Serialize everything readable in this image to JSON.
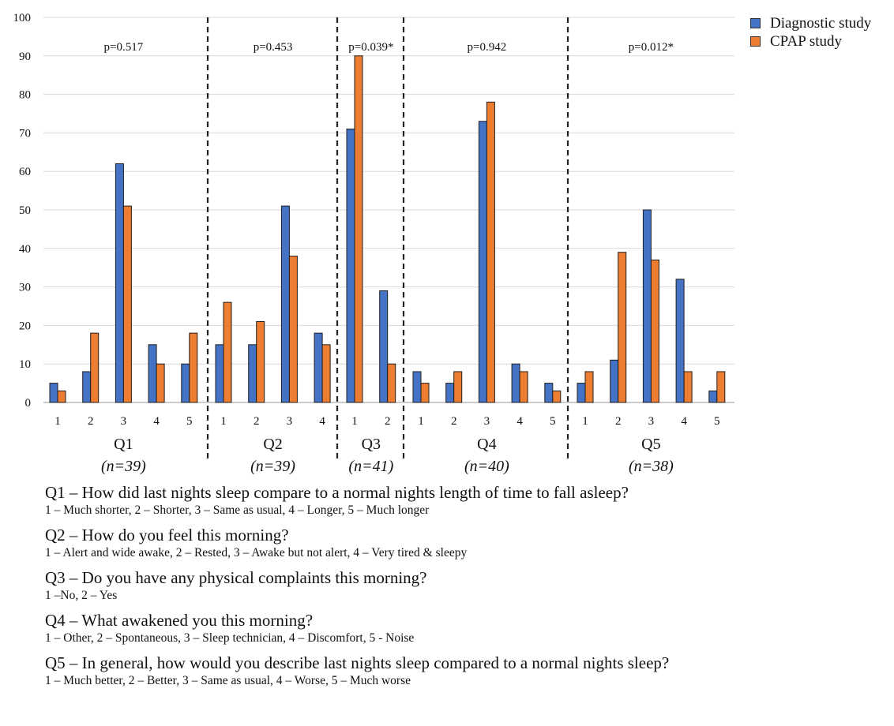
{
  "chart_data": {
    "type": "bar",
    "ylim": [
      0,
      100
    ],
    "yticks": [
      0,
      10,
      20,
      30,
      40,
      50,
      60,
      70,
      80,
      90,
      100
    ],
    "grid": true,
    "legend_position": "top-right",
    "series": [
      {
        "name": "Diagnostic study",
        "color": "#4472C4"
      },
      {
        "name": "CPAP study",
        "color": "#ED7D31"
      }
    ],
    "groups": [
      {
        "label": "Q1",
        "n": "(n=39)",
        "p": "p=0.517",
        "categories": [
          "1",
          "2",
          "3",
          "4",
          "5"
        ],
        "diagnostic": [
          5,
          8,
          62,
          15,
          10
        ],
        "cpap": [
          3,
          18,
          51,
          10,
          18
        ]
      },
      {
        "label": "Q2",
        "n": "(n=39)",
        "p": "p=0.453",
        "categories": [
          "1",
          "2",
          "3",
          "4"
        ],
        "diagnostic": [
          15,
          15,
          51,
          18
        ],
        "cpap": [
          26,
          21,
          38,
          15
        ]
      },
      {
        "label": "Q3",
        "n": "(n=41)",
        "p": "p=0.039*",
        "categories": [
          "1",
          "2"
        ],
        "diagnostic": [
          71,
          29
        ],
        "cpap": [
          90,
          10
        ]
      },
      {
        "label": "Q4",
        "n": "(n=40)",
        "p": "p=0.942",
        "categories": [
          "1",
          "2",
          "3",
          "4",
          "5"
        ],
        "diagnostic": [
          8,
          5,
          73,
          10,
          5
        ],
        "cpap": [
          5,
          8,
          78,
          8,
          3
        ]
      },
      {
        "label": "Q5",
        "n": "(n=38)",
        "p": "p=0.012*",
        "categories": [
          "1",
          "2",
          "3",
          "4",
          "5"
        ],
        "diagnostic": [
          5,
          11,
          50,
          32,
          3
        ],
        "cpap": [
          8,
          39,
          37,
          8,
          8
        ]
      }
    ]
  },
  "questions": [
    {
      "title": "Q1 – How did last nights sleep compare to a normal nights length of time to fall asleep?",
      "scale": "1 – Much shorter, 2 – Shorter, 3 – Same as usual, 4 – Longer, 5 – Much longer"
    },
    {
      "title": "Q2 – How do you feel this morning?",
      "scale": "1 – Alert and wide awake, 2 – Rested, 3 – Awake but not alert, 4 – Very tired & sleepy"
    },
    {
      "title": "Q3 – Do you have any physical complaints this morning?",
      "scale": "1 –No, 2 – Yes"
    },
    {
      "title": "Q4 – What awakened you this morning?",
      "scale": "1 – Other, 2 – Spontaneous, 3 – Sleep technician, 4 – Discomfort, 5 - Noise"
    },
    {
      "title": "Q5 – In general, how would you describe last nights sleep compared to a normal nights sleep?",
      "scale": "1 – Much better, 2 – Better, 3 – Same as usual, 4 – Worse, 5 – Much worse"
    }
  ]
}
